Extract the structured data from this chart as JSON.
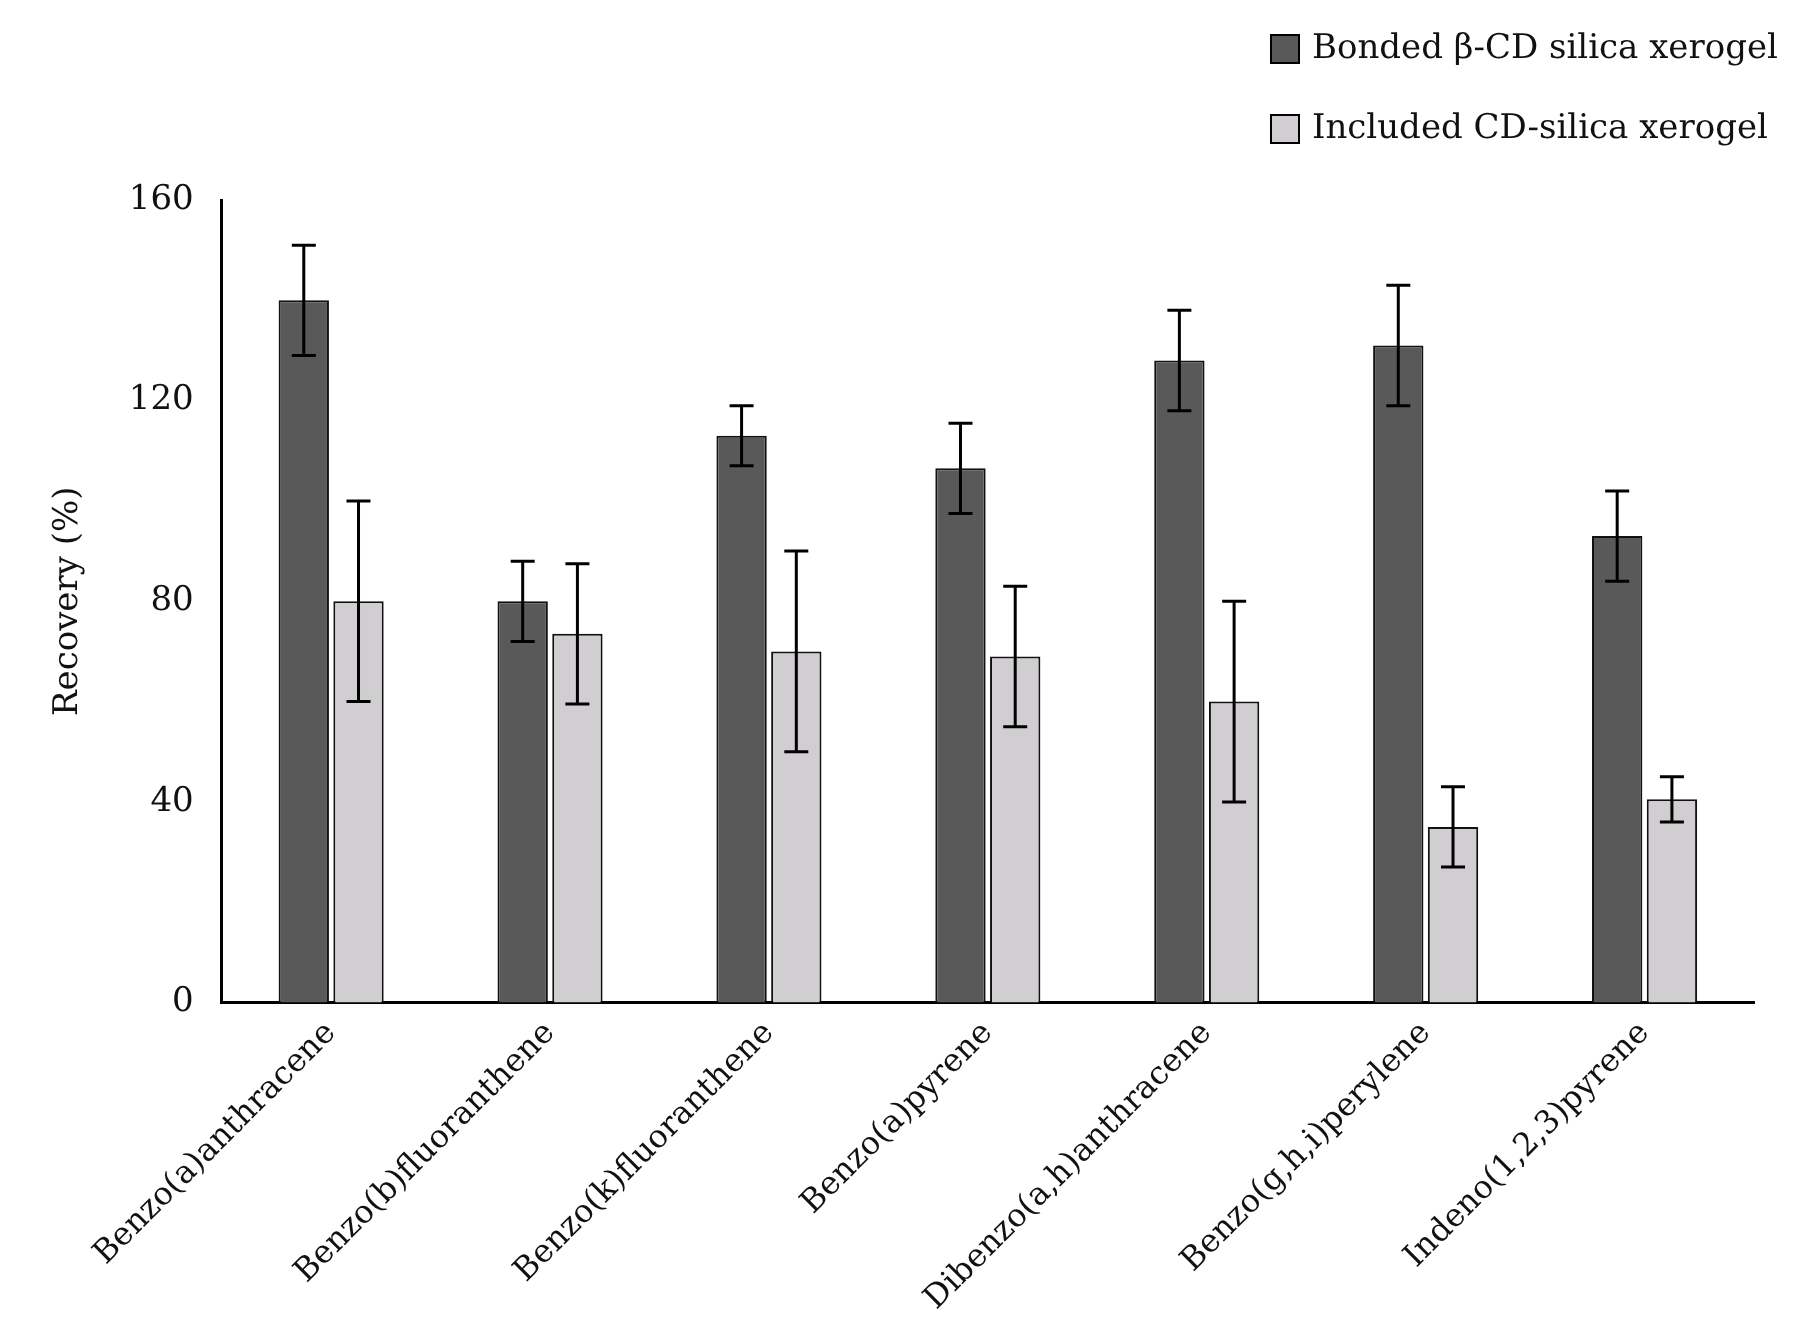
{
  "chart_data": {
    "type": "bar",
    "ylabel": "Recovery (%)",
    "categories": [
      "Benzo(a)anthracene",
      "Benzo(b)fluoranthene",
      "Benzo(k)fluoranthene",
      "Benzo(a)pyrene",
      "Dibenzo(a,h)anthracene",
      "Benzo(g,h,i)perylene",
      "Indeno(1,2,3)pyrene"
    ],
    "series": [
      {
        "name": "Bonded β-CD silica xerogel",
        "color": "#595959",
        "values": [
          140,
          80,
          113,
          106.5,
          128,
          131,
          93
        ],
        "errors": [
          11,
          8,
          6,
          9,
          10,
          12,
          9
        ]
      },
      {
        "name": "Included CD-silica xerogel",
        "color": "#d0ced0",
        "values": [
          80,
          73.5,
          70,
          69,
          60,
          35,
          40.5
        ],
        "errors": [
          20,
          14,
          20,
          14,
          20,
          8,
          4.5
        ]
      }
    ],
    "ylim": [
      0,
      160
    ],
    "yticks": [
      0,
      40,
      80,
      120,
      160
    ],
    "legend": "top right"
  }
}
